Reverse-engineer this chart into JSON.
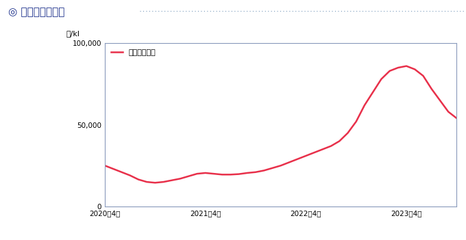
{
  "title": "◎ 燃料価格の推移",
  "title_color": "#1a2e8a",
  "ylabel": "円/kl",
  "ylabel_fontsize": 8,
  "line_color": "#e8304a",
  "line_label": "平均燃料価格",
  "ylim": [
    0,
    100000
  ],
  "yticks": [
    0,
    50000,
    100000
  ],
  "ytick_labels": [
    "0",
    "50,000",
    "100,000"
  ],
  "xtick_labels": [
    "2020年4月",
    "2021年4月",
    "2022年4月",
    "2023年4月"
  ],
  "background_color": "#ffffff",
  "plot_bg_color": "#ffffff",
  "border_color": "#8899bb",
  "dotted_line_color": "#7799bb",
  "months": [
    0,
    1,
    2,
    3,
    4,
    5,
    6,
    7,
    8,
    9,
    10,
    11,
    12,
    13,
    14,
    15,
    16,
    17,
    18,
    19,
    20,
    21,
    22,
    23,
    24,
    25,
    26,
    27,
    28,
    29,
    30,
    31,
    32,
    33,
    34,
    35,
    36,
    37,
    38,
    39,
    40,
    41,
    42
  ],
  "values": [
    25000,
    23000,
    21000,
    19000,
    16500,
    15000,
    14500,
    15000,
    16000,
    17000,
    18500,
    20000,
    20500,
    20000,
    19500,
    19500,
    19800,
    20500,
    21000,
    22000,
    23500,
    25000,
    27000,
    29000,
    31000,
    33000,
    35000,
    37000,
    40000,
    45000,
    52000,
    62000,
    70000,
    78000,
    83000,
    85000,
    86000,
    84000,
    80000,
    72000,
    65000,
    58000,
    54000
  ]
}
